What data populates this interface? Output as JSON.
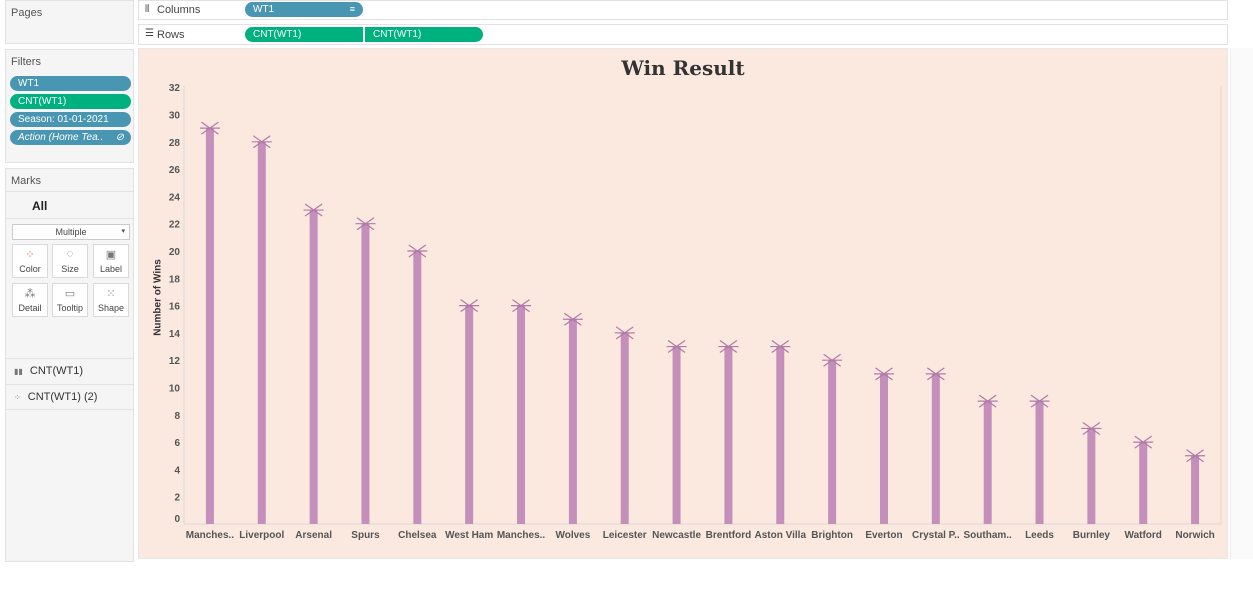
{
  "pages": {
    "title": "Pages"
  },
  "shelves": {
    "columns": {
      "icon": "columns-icon",
      "label": "Columns",
      "pill": "WT1"
    },
    "rows": {
      "icon": "rows-icon",
      "label": "Rows",
      "pills": [
        "CNT(WT1)",
        "CNT(WT1)"
      ]
    }
  },
  "filters": {
    "title": "Filters",
    "items": [
      "WT1",
      "CNT(WT1)",
      "Season: 01-01-2021",
      "Action (Home Tea.."
    ]
  },
  "marks": {
    "title": "Marks",
    "all_label": "All",
    "type_select": "Multiple",
    "buttons": [
      "Color",
      "Size",
      "Label",
      "Detail",
      "Tooltip",
      "Shape"
    ],
    "cards": [
      "CNT(WT1)",
      "CNT(WT1) (2)"
    ]
  },
  "colors": {
    "bar": "#c48fbb",
    "blue_pill": "#4996b2",
    "green_pill": "#00b180",
    "chart_bg": "#fbe9e0"
  },
  "chart_data": {
    "type": "bar",
    "title": "Win Result",
    "ylabel": "Number of Wins",
    "xlabel": "",
    "ylim": [
      0,
      32
    ],
    "yticks": [
      0,
      2,
      4,
      6,
      8,
      10,
      12,
      14,
      16,
      18,
      20,
      22,
      24,
      26,
      28,
      30,
      32
    ],
    "categories": [
      "Manches..",
      "Liverpool",
      "Arsenal",
      "Spurs",
      "Chelsea",
      "West Ham",
      "Manches..",
      "Wolves",
      "Leicester",
      "Newcastle",
      "Brentford",
      "Aston Villa",
      "Brighton",
      "Everton",
      "Crystal P..",
      "Southam..",
      "Leeds",
      "Burnley",
      "Watford",
      "Norwich"
    ],
    "values": [
      29,
      28,
      23,
      22,
      20,
      16,
      16,
      15,
      14,
      13,
      13,
      13,
      12,
      11,
      11,
      9,
      9,
      7,
      6,
      5
    ],
    "marker": "asterisk",
    "grid": false
  }
}
